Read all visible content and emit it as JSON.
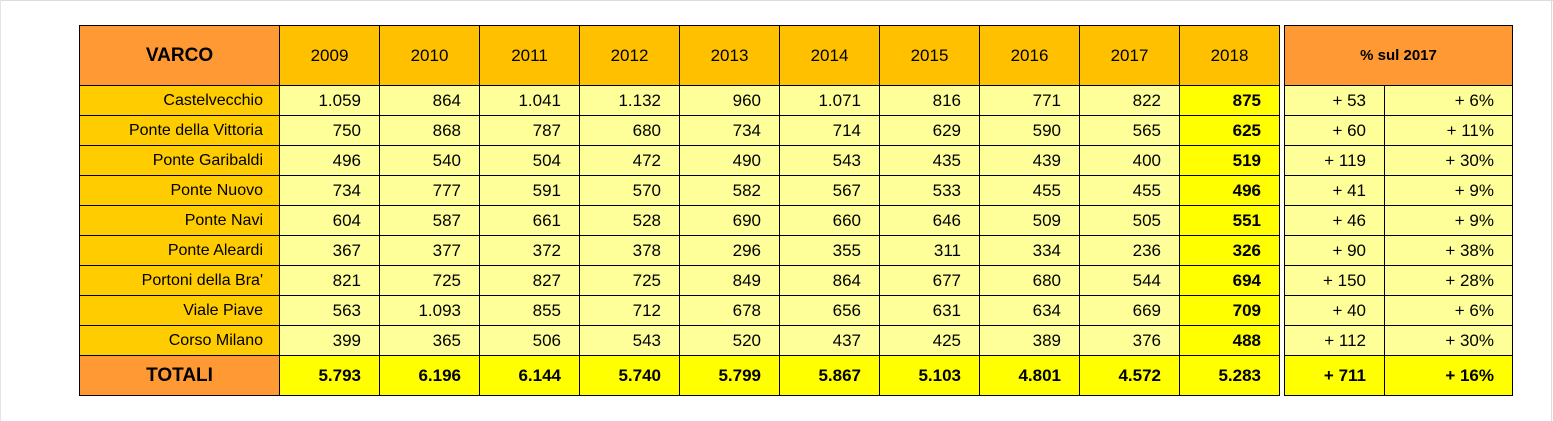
{
  "table": {
    "header_label": "VARCO",
    "years": [
      "2009",
      "2010",
      "2011",
      "2012",
      "2013",
      "2014",
      "2015",
      "2016",
      "2017",
      "2018"
    ],
    "rows": [
      {
        "name": "Castelvecchio",
        "values": [
          "1.059",
          "864",
          "1.041",
          "1.132",
          "960",
          "1.071",
          "816",
          "771",
          "822",
          "875"
        ],
        "diff": "+ 53",
        "pct": "+ 6%"
      },
      {
        "name": "Ponte della Vittoria",
        "values": [
          "750",
          "868",
          "787",
          "680",
          "734",
          "714",
          "629",
          "590",
          "565",
          "625"
        ],
        "diff": "+ 60",
        "pct": "+ 11%"
      },
      {
        "name": "Ponte Garibaldi",
        "values": [
          "496",
          "540",
          "504",
          "472",
          "490",
          "543",
          "435",
          "439",
          "400",
          "519"
        ],
        "diff": "+ 119",
        "pct": "+ 30%"
      },
      {
        "name": "Ponte Nuovo",
        "values": [
          "734",
          "777",
          "591",
          "570",
          "582",
          "567",
          "533",
          "455",
          "455",
          "496"
        ],
        "diff": "+ 41",
        "pct": "+ 9%"
      },
      {
        "name": "Ponte Navi",
        "values": [
          "604",
          "587",
          "661",
          "528",
          "690",
          "660",
          "646",
          "509",
          "505",
          "551"
        ],
        "diff": "+ 46",
        "pct": "+ 9%"
      },
      {
        "name": "Ponte Aleardi",
        "values": [
          "367",
          "377",
          "372",
          "378",
          "296",
          "355",
          "311",
          "334",
          "236",
          "326"
        ],
        "diff": "+ 90",
        "pct": "+ 38%"
      },
      {
        "name": "Portoni della Bra'",
        "values": [
          "821",
          "725",
          "827",
          "725",
          "849",
          "864",
          "677",
          "680",
          "544",
          "694"
        ],
        "diff": "+ 150",
        "pct": "+ 28%"
      },
      {
        "name": "Viale Piave",
        "values": [
          "563",
          "1.093",
          "855",
          "712",
          "678",
          "656",
          "631",
          "634",
          "669",
          "709"
        ],
        "diff": "+ 40",
        "pct": "+ 6%"
      },
      {
        "name": "Corso Milano",
        "values": [
          "399",
          "365",
          "506",
          "543",
          "520",
          "437",
          "425",
          "389",
          "376",
          "488"
        ],
        "diff": "+ 112",
        "pct": "+ 30%"
      }
    ],
    "totals": {
      "label": "TOTALI",
      "values": [
        "5.793",
        "6.196",
        "6.144",
        "5.740",
        "5.799",
        "5.867",
        "5.103",
        "4.801",
        "4.572",
        "5.283"
      ],
      "diff": "+ 711",
      "pct": "+ 16%"
    }
  },
  "comparison": {
    "header_label": "% sul 2017"
  },
  "colors": {
    "header_orange": "#ff9933",
    "year_header": "#ffc000",
    "name_cell": "#ffcc00",
    "value_cell": "#ffff99",
    "highlight": "#ffff00"
  }
}
